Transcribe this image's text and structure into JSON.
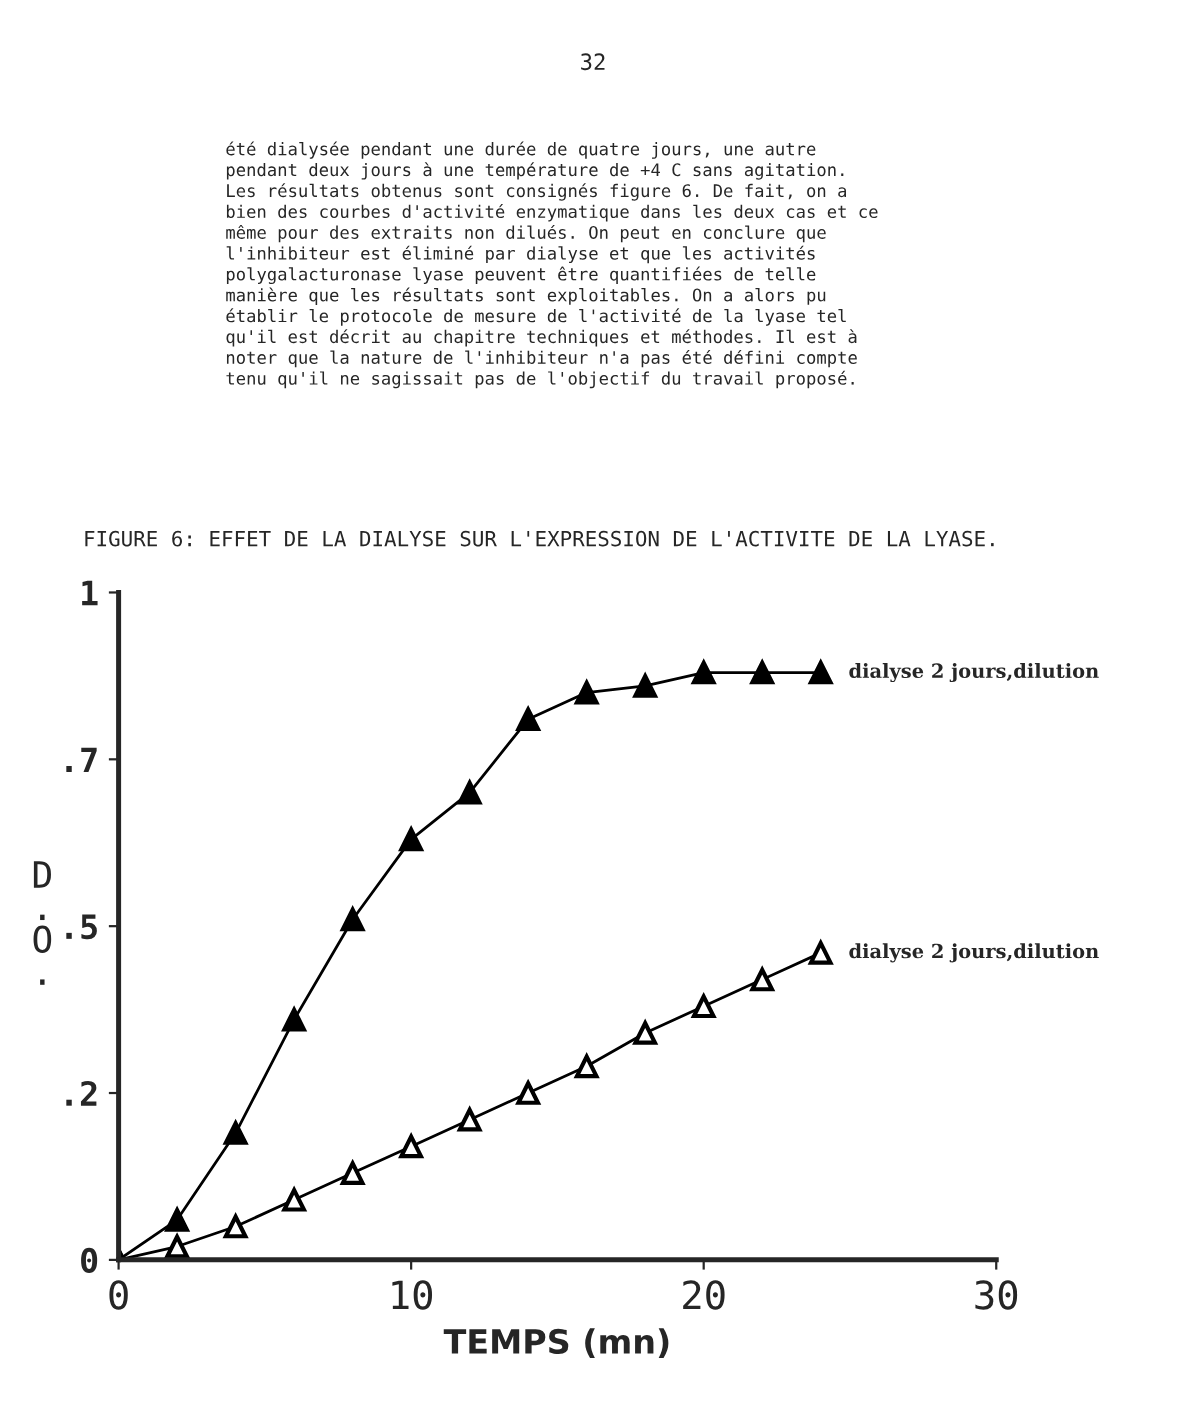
{
  "chart_data": {
    "type": "line",
    "title": "FIGURE 6: EFFET DE LA DIALYSE SUR L'EXPRESSION DE L'ACTIVITE DE LA LYASE.",
    "xlabel": "TEMPS (mn)",
    "ylabel": "D.O.",
    "x": [
      0,
      2,
      4,
      6,
      8,
      10,
      12,
      14,
      16,
      18,
      20,
      22,
      24
    ],
    "series": [
      {
        "name": "dialyse 2 jours,dilution",
        "color": "#000000",
        "values": [
          0,
          0.06,
          0.19,
          0.36,
          0.51,
          0.63,
          0.7,
          0.81,
          0.85,
          0.86,
          0.88,
          0.88,
          0.88
        ]
      },
      {
        "name": "dialyse 2 jours,dilution",
        "color": "#000000",
        "values": [
          0,
          0.02,
          0.05,
          0.09,
          0.13,
          0.17,
          0.21,
          0.25,
          0.29,
          0.34,
          0.38,
          0.42,
          0.46
        ]
      }
    ],
    "xlim": [
      0,
      30
    ],
    "xticks": [
      0,
      10,
      20,
      30
    ],
    "ylim": [
      0,
      1
    ],
    "yticks": [
      {
        "value": 0,
        "label": "0"
      },
      {
        "value": 0.25,
        "label": ".2"
      },
      {
        "value": 0.5,
        "label": ".5"
      },
      {
        "value": 0.75,
        "label": ".7"
      },
      {
        "value": 1,
        "label": "1"
      }
    ],
    "marker": "triangle",
    "line_style": "solid",
    "grid": false,
    "legend": false,
    "annotations": [
      "32",
      "été dialysée pendant une durée de quatre jours, une autre\npendant deux jours à une température de +4 C sans agitation.\nLes résultats obtenus sont consignés figure 6. De fait, on a\nbien des courbes d'activité enzymatique dans les deux cas et ce\nmême pour des extraits non dilués. On peut en conclure que\nl'inhibiteur est éliminé par dialyse et que les activités\npolygalacturonase lyase peuvent être quantifiées de telle\nmanière que les résultats sont exploitables. On a alors pu\nétablir le protocole de mesure de l'activité de la lyase tel\nqu'il est décrit au chapitre techniques et méthodes. Il est à\nnoter que la nature de l'inhibiteur n'a pas été défini compte\ntenu qu'il ne sagissait pas de l'objectif du travail proposé."
    ]
  }
}
